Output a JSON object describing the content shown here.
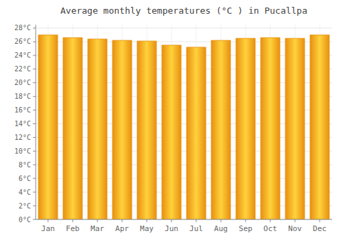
{
  "chart_data": {
    "type": "bar",
    "title": "Average monthly temperatures (°C ) in Pucallpa",
    "categories": [
      "Jan",
      "Feb",
      "Mar",
      "Apr",
      "May",
      "Jun",
      "Jul",
      "Aug",
      "Sep",
      "Oct",
      "Nov",
      "Dec"
    ],
    "values": [
      27.0,
      26.6,
      26.4,
      26.2,
      26.1,
      25.5,
      25.2,
      26.2,
      26.5,
      26.6,
      26.5,
      27.0
    ],
    "color": "#E89010",
    "ylim": [
      0,
      28.5
    ],
    "yticks": [
      {
        "value": 0,
        "label": "0°C"
      },
      {
        "value": 2,
        "label": "2°C"
      },
      {
        "value": 4,
        "label": "4°C"
      },
      {
        "value": 6,
        "label": "6°C"
      },
      {
        "value": 8,
        "label": "8°C"
      },
      {
        "value": 10,
        "label": "10°C"
      },
      {
        "value": 12,
        "label": "12°C"
      },
      {
        "value": 14,
        "label": "14°C"
      },
      {
        "value": 16,
        "label": "16°C"
      },
      {
        "value": 18,
        "label": "18°C"
      },
      {
        "value": 20,
        "label": "20°C"
      },
      {
        "value": 22,
        "label": "22°C"
      },
      {
        "value": 24,
        "label": "24°C"
      },
      {
        "value": 26,
        "label": "26°C"
      },
      {
        "value": 28,
        "label": "28°C"
      }
    ],
    "grid": true
  }
}
